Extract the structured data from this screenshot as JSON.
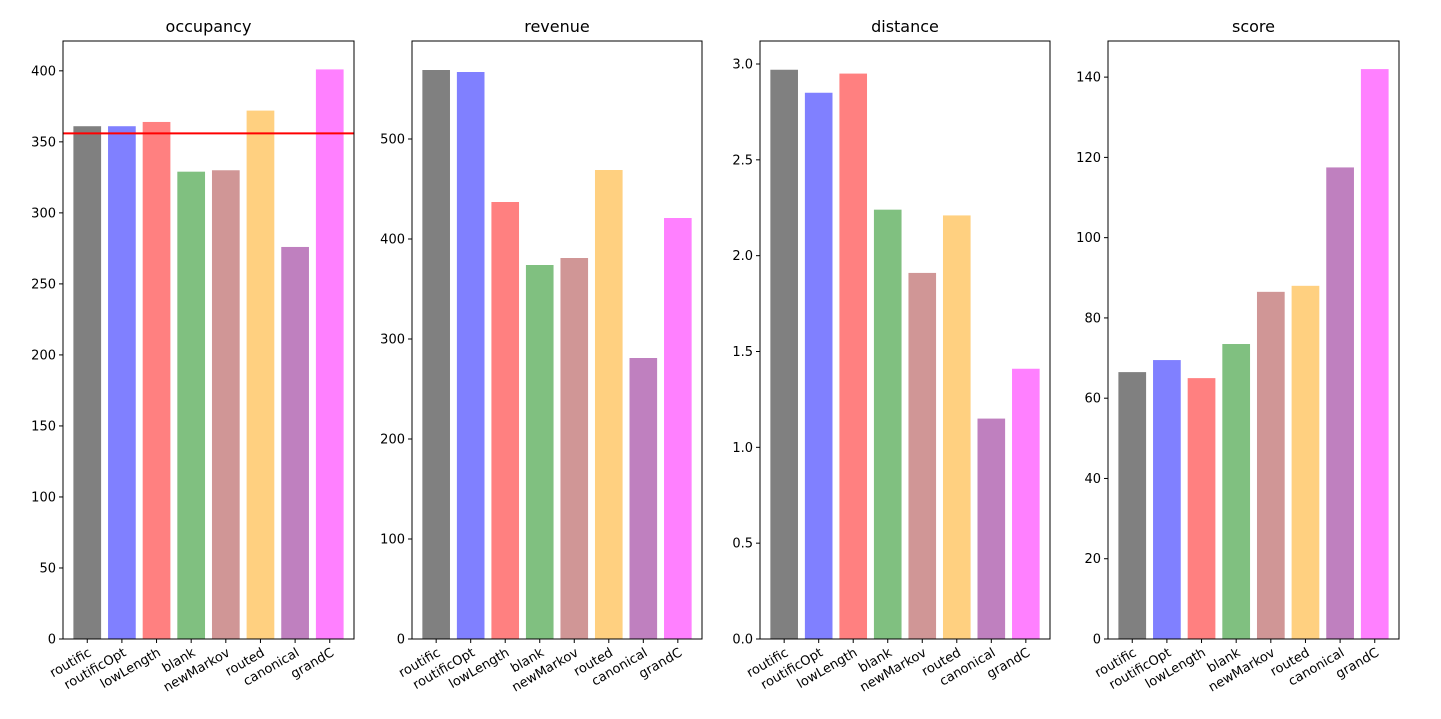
{
  "chart_data": [
    {
      "type": "bar",
      "title": "occupancy",
      "categories": [
        "routific",
        "routificOpt",
        "lowLength",
        "blank",
        "newMarkov",
        "routed",
        "canonical",
        "grandC"
      ],
      "values": [
        361,
        361,
        364,
        329,
        330,
        372,
        276,
        401
      ],
      "reference_line": {
        "y": 356,
        "color": "#ff0000"
      },
      "ylim": [
        0,
        421
      ],
      "yticks": [
        0,
        50,
        100,
        150,
        200,
        250,
        300,
        350,
        400
      ],
      "xlabel": "",
      "ylabel": "",
      "grid": false
    },
    {
      "type": "bar",
      "title": "revenue",
      "categories": [
        "routific",
        "routificOpt",
        "lowLength",
        "blank",
        "newMarkov",
        "routed",
        "canonical",
        "grandC"
      ],
      "values": [
        569,
        567,
        437,
        374,
        381,
        469,
        281,
        421
      ],
      "ylim": [
        0,
        598
      ],
      "yticks": [
        0,
        100,
        200,
        300,
        400,
        500
      ],
      "xlabel": "",
      "ylabel": "",
      "grid": false
    },
    {
      "type": "bar",
      "title": "distance",
      "categories": [
        "routific",
        "routificOpt",
        "lowLength",
        "blank",
        "newMarkov",
        "routed",
        "canonical",
        "grandC"
      ],
      "values": [
        2.97,
        2.85,
        2.95,
        2.24,
        1.91,
        2.21,
        1.15,
        1.41
      ],
      "ylim": [
        0,
        3.12
      ],
      "yticks": [
        0.0,
        0.5,
        1.0,
        1.5,
        2.0,
        2.5,
        3.0
      ],
      "ytick_labels": [
        "0.0",
        "0.5",
        "1.0",
        "1.5",
        "2.0",
        "2.5",
        "3.0"
      ],
      "xlabel": "",
      "ylabel": "",
      "grid": false
    },
    {
      "type": "bar",
      "title": "score",
      "categories": [
        "routific",
        "routificOpt",
        "lowLength",
        "blank",
        "newMarkov",
        "routed",
        "canonical",
        "grandC"
      ],
      "values": [
        66.5,
        69.5,
        65,
        73.5,
        86.5,
        88,
        117.5,
        142
      ],
      "ylim": [
        0,
        149
      ],
      "yticks": [
        0,
        20,
        40,
        60,
        80,
        100,
        120,
        140
      ],
      "xlabel": "",
      "ylabel": "",
      "grid": false
    }
  ],
  "bar_colors": [
    "#808080",
    "#8080ff",
    "#ff8080",
    "#80c080",
    "#d09696",
    "#ffd080",
    "#bf80bf",
    "#ff80ff"
  ]
}
